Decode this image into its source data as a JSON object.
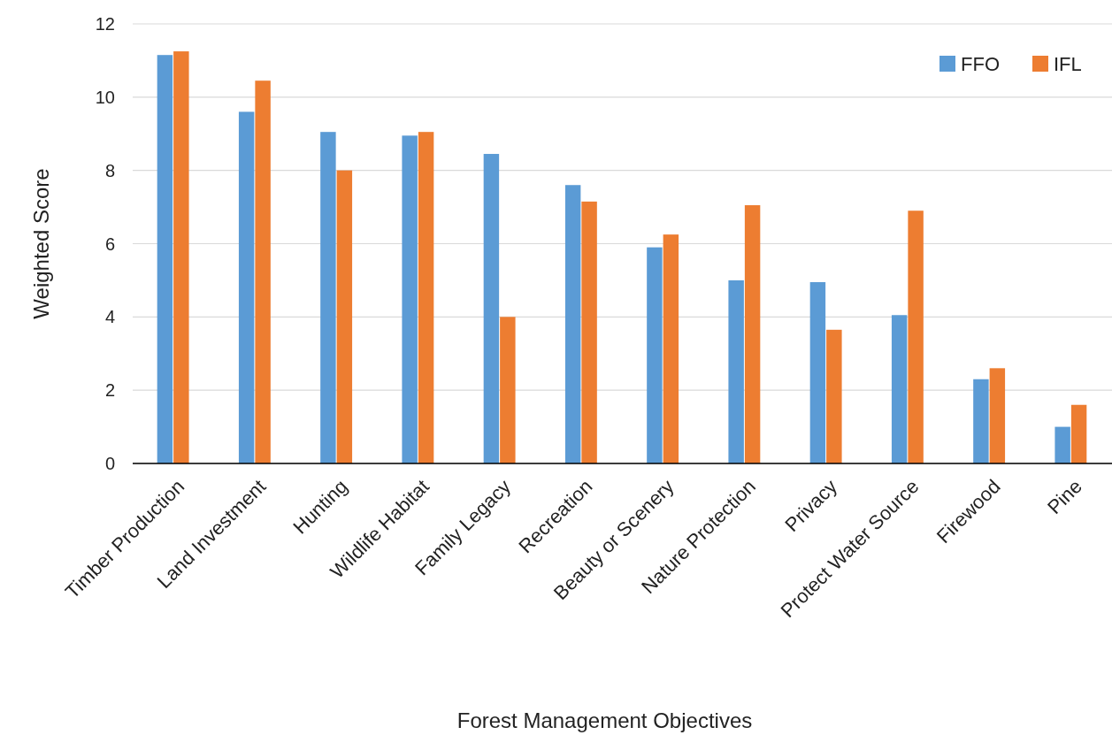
{
  "chart_data": {
    "type": "bar",
    "xlabel": "Forest Management Objectives",
    "ylabel": "Weighted Score",
    "categories": [
      "Timber Production",
      "Land Investment",
      "Hunting",
      "Wildlife Habitat",
      "Family Legacy",
      "Recreation",
      "Beauty or Scenery",
      "Nature Protection",
      "Privacy",
      "Protect Water Source",
      "Firewood",
      "Pine"
    ],
    "series": [
      {
        "name": "FFO",
        "color": "#5b9bd5",
        "values": [
          11.15,
          9.6,
          9.05,
          8.95,
          8.45,
          7.6,
          5.9,
          5.0,
          4.95,
          4.05,
          2.3,
          1.0
        ]
      },
      {
        "name": "IFL",
        "color": "#ed7d31",
        "values": [
          11.25,
          10.45,
          8.0,
          9.05,
          4.0,
          7.15,
          6.25,
          7.05,
          3.65,
          6.9,
          2.6,
          1.6
        ]
      }
    ],
    "ylim": [
      0,
      12
    ],
    "yticks": [
      0,
      2,
      4,
      6,
      8,
      10,
      12
    ],
    "grid": "y",
    "legend": "top right"
  }
}
